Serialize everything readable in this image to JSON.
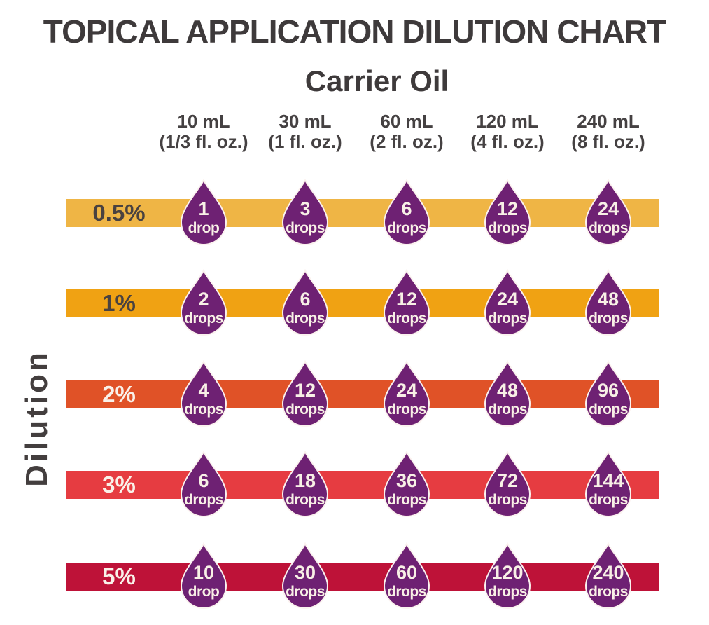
{
  "title": "TOPICAL APPLICATION DILUTION CHART",
  "carrier_oil_label": "Carrier Oil",
  "dilution_label": "Dilution",
  "colors": {
    "title_text": "#3E3A3B",
    "header_text": "#454142",
    "droplet": "#6E2173",
    "droplet_outline": "#FBF2EF",
    "droplet_text": "#F8F0E6"
  },
  "columns": [
    {
      "volume": "10 mL",
      "ounces": "(1/3 fl. oz.)"
    },
    {
      "volume": "30 mL",
      "ounces": "(1 fl. oz.)"
    },
    {
      "volume": "60 mL",
      "ounces": "(2 fl. oz.)"
    },
    {
      "volume": "120 mL",
      "ounces": "(4 fl. oz.)"
    },
    {
      "volume": "240 mL",
      "ounces": "(8 fl. oz.)"
    }
  ],
  "rows": [
    {
      "label": "0.5%",
      "bar_color": "#EFB545",
      "label_color": "#4A4240",
      "cells": [
        {
          "value": "1",
          "unit": "drop"
        },
        {
          "value": "3",
          "unit": "drops"
        },
        {
          "value": "6",
          "unit": "drops"
        },
        {
          "value": "12",
          "unit": "drops"
        },
        {
          "value": "24",
          "unit": "drops"
        }
      ]
    },
    {
      "label": "1%",
      "bar_color": "#F0A213",
      "label_color": "#4A4240",
      "cells": [
        {
          "value": "2",
          "unit": "drops"
        },
        {
          "value": "6",
          "unit": "drops"
        },
        {
          "value": "12",
          "unit": "drops"
        },
        {
          "value": "24",
          "unit": "drops"
        },
        {
          "value": "48",
          "unit": "drops"
        }
      ]
    },
    {
      "label": "2%",
      "bar_color": "#E05227",
      "label_color": "#F9F1E9",
      "cells": [
        {
          "value": "4",
          "unit": "drops"
        },
        {
          "value": "12",
          "unit": "drops"
        },
        {
          "value": "24",
          "unit": "drops"
        },
        {
          "value": "48",
          "unit": "drops"
        },
        {
          "value": "96",
          "unit": "drops"
        }
      ]
    },
    {
      "label": "3%",
      "bar_color": "#E63C41",
      "label_color": "#F9F1E9",
      "cells": [
        {
          "value": "6",
          "unit": "drops"
        },
        {
          "value": "18",
          "unit": "drops"
        },
        {
          "value": "36",
          "unit": "drops"
        },
        {
          "value": "72",
          "unit": "drops"
        },
        {
          "value": "144",
          "unit": "drops"
        }
      ]
    },
    {
      "label": "5%",
      "bar_color": "#BE1238",
      "label_color": "#F9F1E9",
      "cells": [
        {
          "value": "10",
          "unit": "drop"
        },
        {
          "value": "30",
          "unit": "drops"
        },
        {
          "value": "60",
          "unit": "drops"
        },
        {
          "value": "120",
          "unit": "drops"
        },
        {
          "value": "240",
          "unit": "drops"
        }
      ]
    }
  ],
  "chart_data": {
    "type": "table",
    "title": "TOPICAL APPLICATION DILUTION CHART",
    "xlabel": "Carrier Oil",
    "ylabel": "Dilution",
    "categories": [
      "10 mL (1/3 fl. oz.)",
      "30 mL (1 fl. oz.)",
      "60 mL (2 fl. oz.)",
      "120 mL (4 fl. oz.)",
      "240 mL (8 fl. oz.)"
    ],
    "series": [
      {
        "name": "0.5%",
        "values": [
          1,
          3,
          6,
          12,
          24
        ]
      },
      {
        "name": "1%",
        "values": [
          2,
          6,
          12,
          24,
          48
        ]
      },
      {
        "name": "2%",
        "values": [
          4,
          12,
          24,
          48,
          96
        ]
      },
      {
        "name": "3%",
        "values": [
          6,
          18,
          36,
          72,
          144
        ]
      },
      {
        "name": "5%",
        "values": [
          10,
          30,
          60,
          120,
          240
        ]
      }
    ],
    "value_unit": "drops",
    "legend_position": "none",
    "grid": false
  }
}
